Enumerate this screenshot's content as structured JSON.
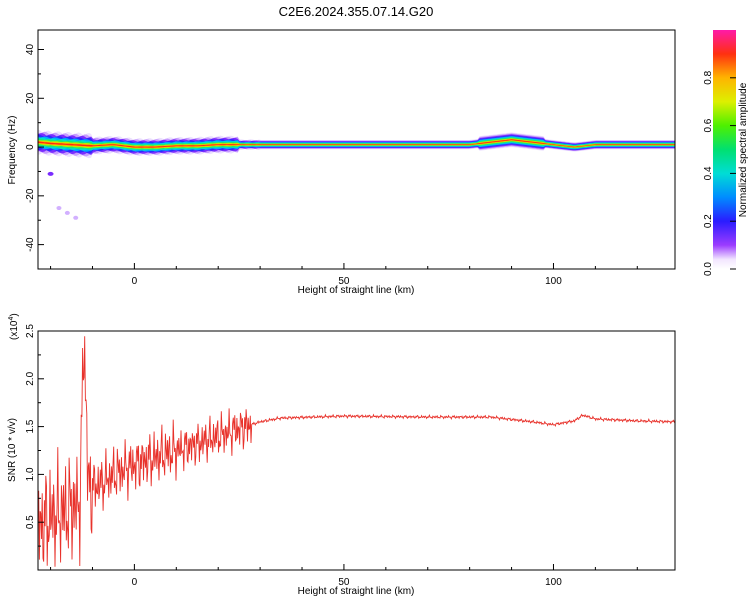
{
  "title": "C2E6.2024.355.07.14.G20",
  "chart_data": [
    {
      "type": "heatmap",
      "title": "C2E6.2024.355.07.14.G20",
      "xlabel": "Height of straight line (km)",
      "ylabel": "Frequency (Hz)",
      "xlim": [
        -23,
        129
      ],
      "ylim": [
        -50,
        48
      ],
      "xticks": [
        0,
        50,
        100
      ],
      "yticks": [
        -40,
        -20,
        0,
        20,
        40
      ],
      "colorbar": {
        "label": "Normalized spectral amplitude",
        "range": [
          0,
          1
        ],
        "ticks": [
          "0.0",
          "0.2",
          "0.4",
          "0.6",
          "0.8"
        ]
      },
      "ridge": [
        [
          -23,
          2
        ],
        [
          -20,
          1.5
        ],
        [
          -15,
          1
        ],
        [
          -10,
          0.5
        ],
        [
          -5,
          1
        ],
        [
          0,
          0
        ],
        [
          5,
          0
        ],
        [
          10,
          0.5
        ],
        [
          15,
          0.5
        ],
        [
          20,
          1
        ],
        [
          30,
          1
        ],
        [
          50,
          1
        ],
        [
          70,
          1
        ],
        [
          80,
          1
        ],
        [
          85,
          2
        ],
        [
          90,
          3
        ],
        [
          95,
          2
        ],
        [
          100,
          1
        ],
        [
          105,
          0
        ],
        [
          110,
          1
        ],
        [
          120,
          1
        ],
        [
          129,
          1
        ]
      ],
      "spots": [
        [
          -20,
          -11
        ],
        [
          -18,
          -25
        ],
        [
          -16,
          -27
        ],
        [
          -14,
          -29
        ]
      ]
    },
    {
      "type": "line",
      "xlabel": "Height of straight line (km)",
      "ylabel": "SNR (10 * v/v)",
      "y_multiplier": "(x10",
      "y_multiplier_exp": "4",
      "y_multiplier_close": ")",
      "xlim": [
        -23,
        129
      ],
      "ylim": [
        0,
        2.5
      ],
      "xticks": [
        0,
        50,
        100
      ],
      "yticks": [
        "0.5",
        "1.0",
        "1.5",
        "2.0",
        "2.5"
      ],
      "color": "#e8312a",
      "baseline": [
        [
          -23,
          0.45
        ],
        [
          -20,
          0.55
        ],
        [
          -15,
          0.65
        ],
        [
          -13,
          0.7
        ],
        [
          -12,
          2.5
        ],
        [
          -11,
          0.85
        ],
        [
          -8,
          0.9
        ],
        [
          -5,
          1.0
        ],
        [
          0,
          1.1
        ],
        [
          5,
          1.18
        ],
        [
          10,
          1.25
        ],
        [
          15,
          1.32
        ],
        [
          20,
          1.4
        ],
        [
          25,
          1.48
        ],
        [
          30,
          1.55
        ],
        [
          35,
          1.59
        ],
        [
          50,
          1.61
        ],
        [
          70,
          1.6
        ],
        [
          85,
          1.6
        ],
        [
          95,
          1.55
        ],
        [
          100,
          1.52
        ],
        [
          105,
          1.56
        ],
        [
          107,
          1.62
        ],
        [
          110,
          1.58
        ],
        [
          120,
          1.56
        ],
        [
          129,
          1.55
        ]
      ]
    }
  ]
}
